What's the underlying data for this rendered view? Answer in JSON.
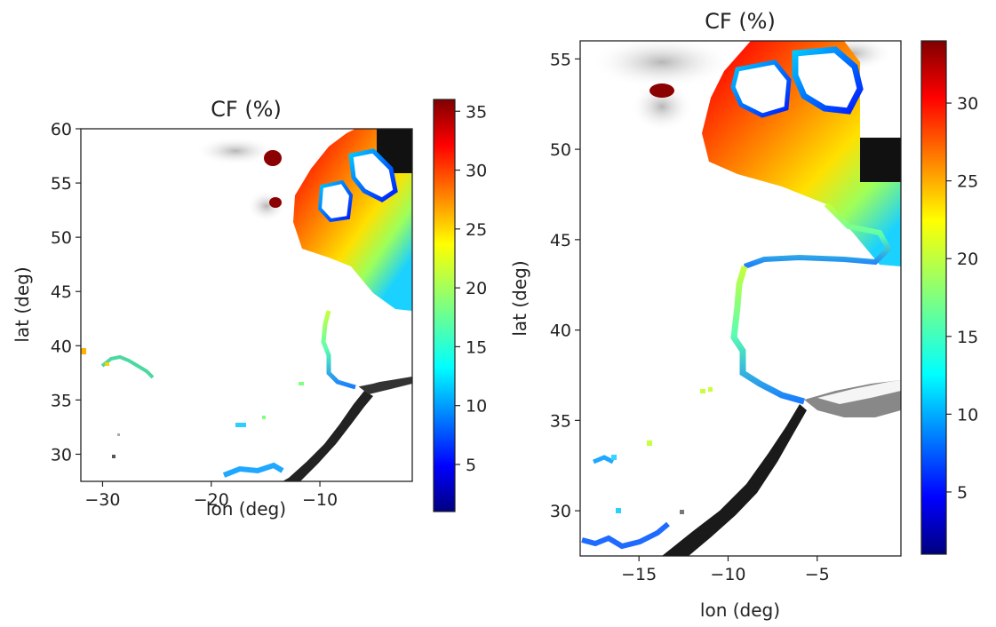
{
  "colormap": "jet",
  "land_shading": "grayscale",
  "panels": [
    {
      "id": "left",
      "title": "CF (%)",
      "xlabel": "lon (deg)",
      "ylabel": "lat (deg)",
      "xlim": [
        -32,
        -1.5
      ],
      "ylim": [
        27.5,
        60
      ],
      "xticks": [
        -30,
        -20,
        -10
      ],
      "xtick_labels": [
        "−30",
        "−20",
        "−10"
      ],
      "yticks": [
        30,
        35,
        40,
        45,
        50,
        55,
        60
      ],
      "ytick_labels": [
        "30",
        "35",
        "40",
        "45",
        "50",
        "55",
        "60"
      ],
      "colorbar": {
        "vmin": 1,
        "vmax": 36,
        "ticks": [
          5,
          10,
          15,
          20,
          25,
          30,
          35
        ],
        "tick_labels": [
          "5",
          "10",
          "15",
          "20",
          "25",
          "30",
          "35"
        ]
      }
    },
    {
      "id": "right",
      "title": "CF (%)",
      "xlabel": "lon (deg)",
      "ylabel": "lat (deg)",
      "xlim": [
        -18.3,
        -0.3
      ],
      "ylim": [
        27.5,
        56
      ],
      "xticks": [
        -15,
        -10,
        -5
      ],
      "xtick_labels": [
        "−15",
        "−10",
        "−5"
      ],
      "yticks": [
        30,
        35,
        40,
        45,
        50,
        55
      ],
      "ytick_labels": [
        "30",
        "35",
        "40",
        "45",
        "50",
        "55"
      ],
      "colorbar": {
        "vmin": 1,
        "vmax": 34,
        "ticks": [
          5,
          10,
          15,
          20,
          25,
          30
        ],
        "tick_labels": [
          "5",
          "10",
          "15",
          "20",
          "25",
          "30"
        ]
      }
    }
  ]
}
